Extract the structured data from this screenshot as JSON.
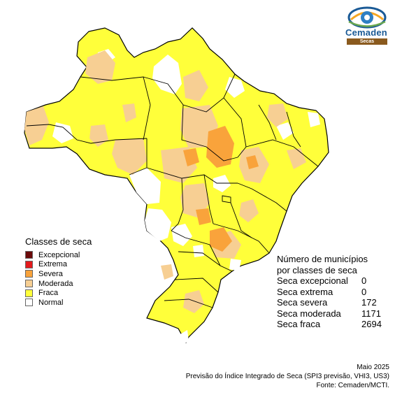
{
  "logo": {
    "name": "Cemaden",
    "subtitle": "Secas"
  },
  "colors": {
    "excepcional": "#6b0a0a",
    "extrema": "#e31a1c",
    "severa": "#f9a33b",
    "moderada": "#f7cf93",
    "fraca": "#ffff3a",
    "normal": "#ffffff",
    "border": "#000000"
  },
  "legend": {
    "title": "Classes de seca",
    "items": [
      {
        "label": "Excepcional",
        "color": "#6b0a0a"
      },
      {
        "label": "Extrema",
        "color": "#e31a1c"
      },
      {
        "label": "Severa",
        "color": "#f9a33b"
      },
      {
        "label": "Moderada",
        "color": "#f7cf93"
      },
      {
        "label": "Fraca",
        "color": "#ffff3a"
      },
      {
        "label": "Normal",
        "color": "#ffffff"
      }
    ]
  },
  "counts": {
    "title_line1": "Número de municípios",
    "title_line2": "por classes de seca",
    "rows": [
      {
        "label": "Seca excepcional",
        "value": "0"
      },
      {
        "label": "Seca extrema",
        "value": "0"
      },
      {
        "label": "Seca severa",
        "value": "172"
      },
      {
        "label": "Seca moderada",
        "value": "1171"
      },
      {
        "label": "Seca fraca",
        "value": "2694"
      }
    ]
  },
  "footer": {
    "line1": "Maio 2025",
    "line2": "Previsão do Índice Integrado de Seca (SPI3 previsão, VHI3, US3)",
    "line3": "Fonte: Cemaden/MCTI."
  }
}
